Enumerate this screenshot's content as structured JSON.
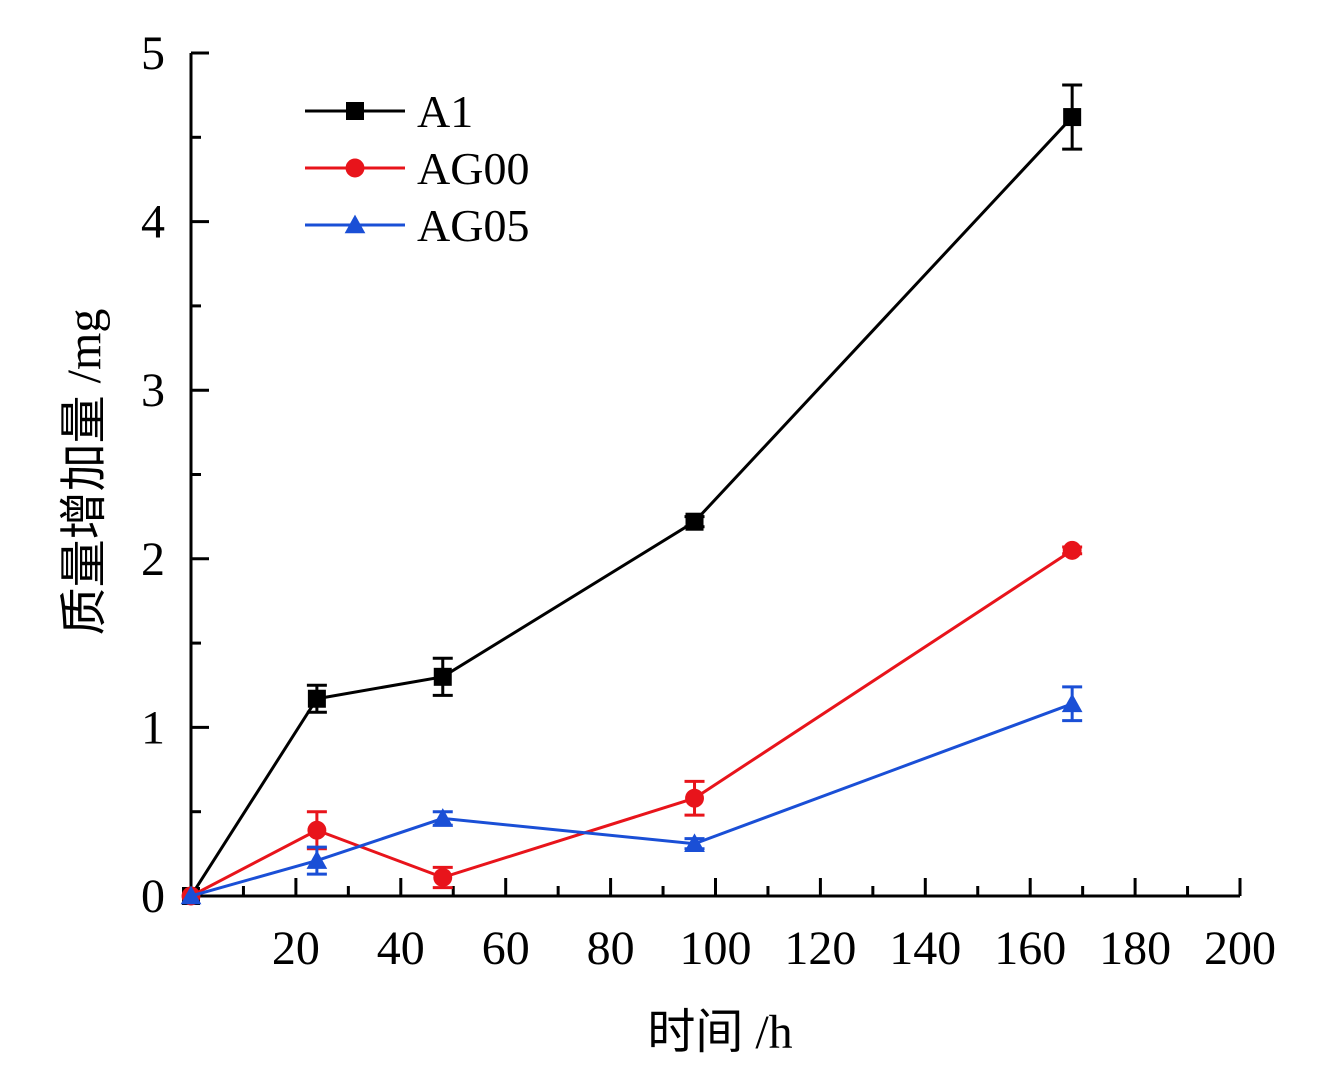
{
  "chart_data": {
    "type": "line",
    "title": "",
    "xlabel": "时间 /h",
    "ylabel": "质量增加量 /mg",
    "xlim": [
      0,
      200
    ],
    "ylim": [
      0,
      5
    ],
    "x_ticks": [
      20,
      40,
      60,
      80,
      100,
      120,
      140,
      160,
      180,
      200
    ],
    "x_tick_labels": [
      "20",
      "40",
      "60",
      "80",
      "100",
      "120",
      "140",
      "160",
      "180",
      "200"
    ],
    "x_minor_step": 10,
    "y_ticks": [
      0,
      1,
      2,
      3,
      4,
      5
    ],
    "y_tick_labels": [
      "0",
      "1",
      "2",
      "3",
      "4",
      "5"
    ],
    "y_minor_step": 0.5,
    "grid": false,
    "legend_position": "top-left",
    "series": [
      {
        "name": "A1",
        "color": "#000000",
        "marker": "square",
        "x": [
          0,
          24,
          48,
          96,
          168
        ],
        "y": [
          0,
          1.17,
          1.3,
          2.22,
          4.62
        ],
        "err": [
          0,
          0.08,
          0.11,
          0.03,
          0.19
        ]
      },
      {
        "name": "AG00",
        "color": "#e8141b",
        "marker": "circle",
        "x": [
          0,
          24,
          48,
          96,
          168
        ],
        "y": [
          0,
          0.39,
          0.11,
          0.58,
          2.05
        ],
        "err": [
          0,
          0.11,
          0.06,
          0.1,
          0.02
        ]
      },
      {
        "name": "AG05",
        "color": "#1a4fd6",
        "marker": "triangle",
        "x": [
          0,
          24,
          48,
          96,
          168
        ],
        "y": [
          0,
          0.21,
          0.46,
          0.31,
          1.14
        ],
        "err": [
          0,
          0.08,
          0.04,
          0.03,
          0.1
        ]
      }
    ]
  }
}
